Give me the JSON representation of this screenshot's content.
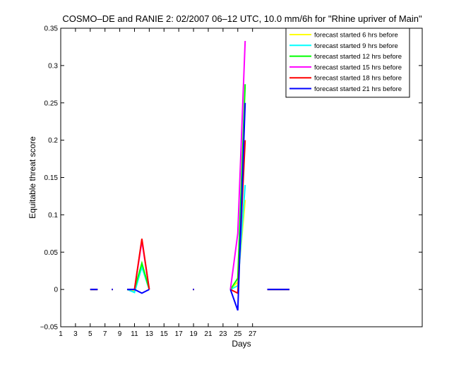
{
  "chart_data": {
    "type": "line",
    "title": "COSMO–DE and RANIE 2: 02/2007 06–12 UTC, 10.0 mm/6h for \"Rhine upriver of Main\"",
    "xlabel": "Days",
    "ylabel": "Equitable threat score",
    "xlim": [
      1,
      50
    ],
    "ylim": [
      -0.05,
      0.35
    ],
    "xticks": [
      1,
      3,
      5,
      7,
      9,
      11,
      13,
      15,
      17,
      19,
      21,
      23,
      25,
      27
    ],
    "yticks": [
      -0.05,
      0,
      0.05,
      0.1,
      0.15,
      0.2,
      0.25,
      0.3,
      0.35
    ],
    "ytick_labels": [
      "−0.05",
      "0",
      "0.05",
      "0.1",
      "0.15",
      "0.2",
      "0.25",
      "0.3",
      "0.35"
    ],
    "legend_position": "top-right",
    "series": [
      {
        "name": "forecast started 6 hrs before",
        "color": "#ffff00",
        "segments": [
          [
            [
              5,
              0
            ],
            [
              6,
              0
            ]
          ],
          [
            [
              8,
              0
            ]
          ],
          [
            [
              10,
              0
            ],
            [
              11,
              -0.002
            ],
            [
              12,
              0.035
            ],
            [
              13,
              0
            ]
          ],
          [
            [
              19,
              0
            ]
          ],
          [
            [
              24,
              0
            ],
            [
              25,
              0.01
            ],
            [
              26,
              0.12
            ]
          ],
          [
            [
              29,
              0
            ],
            [
              32,
              0
            ]
          ]
        ]
      },
      {
        "name": "forecast started 9 hrs before",
        "color": "#00ffff",
        "segments": [
          [
            [
              5,
              0
            ],
            [
              6,
              0
            ]
          ],
          [
            [
              8,
              0
            ]
          ],
          [
            [
              10,
              0
            ],
            [
              11,
              -0.004
            ],
            [
              12,
              0.03
            ],
            [
              13,
              0
            ]
          ],
          [
            [
              19,
              0
            ]
          ],
          [
            [
              24,
              0
            ],
            [
              25,
              0.005
            ],
            [
              26,
              0.14
            ]
          ],
          [
            [
              29,
              0
            ],
            [
              32,
              0
            ]
          ]
        ]
      },
      {
        "name": "forecast started 12 hrs before",
        "color": "#00ff00",
        "segments": [
          [
            [
              5,
              0
            ],
            [
              6,
              0
            ]
          ],
          [
            [
              8,
              0
            ]
          ],
          [
            [
              10,
              0
            ],
            [
              11,
              0
            ],
            [
              12,
              0.035
            ],
            [
              13,
              0
            ]
          ],
          [
            [
              19,
              0
            ]
          ],
          [
            [
              24,
              0
            ],
            [
              25,
              0.015
            ],
            [
              26,
              0.275
            ]
          ],
          [
            [
              29,
              0
            ],
            [
              32,
              0
            ]
          ]
        ]
      },
      {
        "name": "forecast started 15 hrs before",
        "color": "#ff00ff",
        "segments": [
          [
            [
              5,
              0
            ],
            [
              6,
              0
            ]
          ],
          [
            [
              8,
              0
            ]
          ],
          [
            [
              10,
              0
            ],
            [
              11,
              0
            ],
            [
              12,
              0.065
            ],
            [
              13,
              0
            ]
          ],
          [
            [
              19,
              0
            ]
          ],
          [
            [
              24,
              0
            ],
            [
              25,
              0.075
            ],
            [
              26,
              0.333
            ]
          ],
          [
            [
              29,
              0
            ],
            [
              32,
              0
            ]
          ]
        ]
      },
      {
        "name": "forecast started 18 hrs before",
        "color": "#ff0000",
        "segments": [
          [
            [
              5,
              0
            ],
            [
              6,
              0
            ]
          ],
          [
            [
              8,
              0
            ]
          ],
          [
            [
              10,
              0
            ],
            [
              11,
              0
            ],
            [
              12,
              0.068
            ],
            [
              13,
              0
            ]
          ],
          [
            [
              19,
              0
            ]
          ],
          [
            [
              24,
              0
            ],
            [
              25,
              -0.005
            ],
            [
              26,
              0.2
            ]
          ],
          [
            [
              29,
              0
            ],
            [
              32,
              0
            ]
          ]
        ]
      },
      {
        "name": "forecast started 21 hrs before",
        "color": "#0000ff",
        "segments": [
          [
            [
              5,
              0
            ],
            [
              6,
              0
            ]
          ],
          [
            [
              8,
              0
            ]
          ],
          [
            [
              10,
              0
            ],
            [
              11,
              0
            ],
            [
              12,
              -0.005
            ],
            [
              13,
              0
            ]
          ],
          [
            [
              19,
              0
            ]
          ],
          [
            [
              24,
              0
            ],
            [
              25,
              -0.028
            ],
            [
              26,
              0.25
            ]
          ],
          [
            [
              29,
              0
            ],
            [
              32,
              0
            ]
          ]
        ]
      }
    ]
  }
}
